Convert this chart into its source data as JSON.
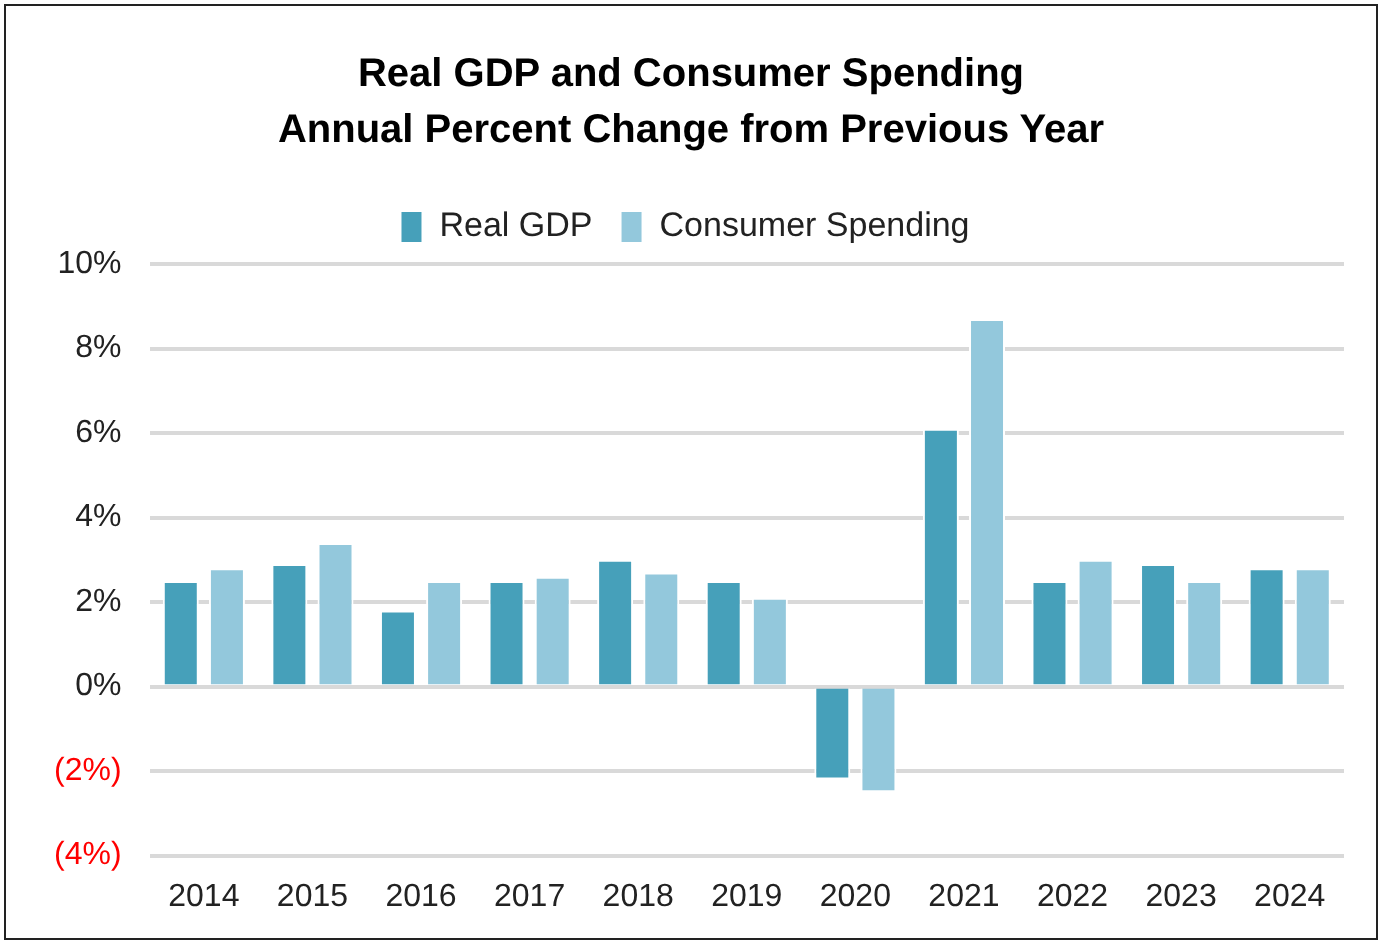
{
  "chart_data": {
    "type": "bar",
    "title": "Real GDP and Consumer Spending\nAnnual Percent Change from Previous Year",
    "categories": [
      "2014",
      "2015",
      "2016",
      "2017",
      "2018",
      "2019",
      "2020",
      "2021",
      "2022",
      "2023",
      "2024"
    ],
    "series": [
      {
        "name": "Real GDP",
        "color": "#46a0ba",
        "values": [
          2.5,
          2.9,
          1.8,
          2.5,
          3.0,
          2.5,
          -2.2,
          6.1,
          2.5,
          2.9,
          2.8
        ]
      },
      {
        "name": "Consumer Spending",
        "color": "#93c8dc",
        "values": [
          2.8,
          3.4,
          2.5,
          2.6,
          2.7,
          2.1,
          -2.5,
          8.7,
          3.0,
          2.5,
          2.8
        ]
      }
    ],
    "ylim": [
      -4,
      10
    ],
    "yticks": [
      {
        "value": -4,
        "label": "(4%)"
      },
      {
        "value": -2,
        "label": "(2%)"
      },
      {
        "value": 0,
        "label": "0%"
      },
      {
        "value": 2,
        "label": "2%"
      },
      {
        "value": 4,
        "label": "4%"
      },
      {
        "value": 6,
        "label": "6%"
      },
      {
        "value": 8,
        "label": "8%"
      },
      {
        "value": 10,
        "label": "10%"
      }
    ],
    "grid": "y",
    "legend": "top"
  }
}
